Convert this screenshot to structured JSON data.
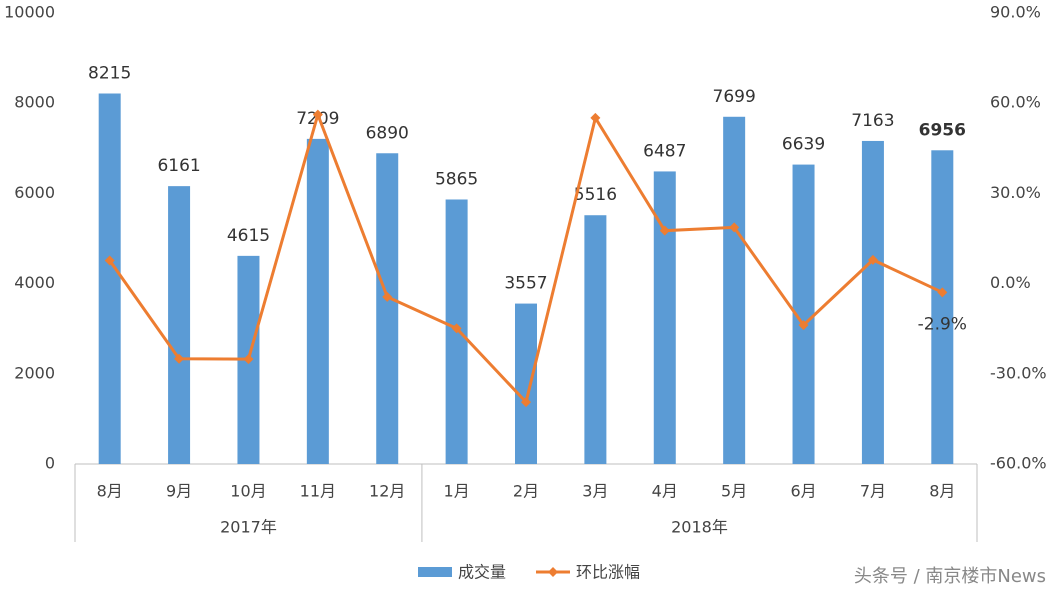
{
  "chart_data": {
    "type": "bar-line",
    "categories": [
      "8月",
      "9月",
      "10月",
      "11月",
      "12月",
      "1月",
      "2月",
      "3月",
      "4月",
      "5月",
      "6月",
      "7月",
      "8月"
    ],
    "groups": [
      {
        "name": "2017年",
        "count": 5
      },
      {
        "name": "2018年",
        "count": 8
      }
    ],
    "series": [
      {
        "name": "成交量",
        "type": "bar",
        "color": "#5b9bd5",
        "values": [
          8215,
          6161,
          4615,
          7209,
          6890,
          5865,
          3557,
          5516,
          6487,
          7699,
          6639,
          7163,
          6956
        ]
      },
      {
        "name": "环比涨幅",
        "type": "line",
        "axis": "y2",
        "color": "#ed7d31",
        "values": [
          7.7,
          -25.0,
          -25.1,
          56.2,
          -4.4,
          -14.9,
          -39.4,
          55.1,
          17.6,
          18.7,
          -13.8,
          7.9,
          -2.9
        ],
        "value_labels": [
          null,
          null,
          null,
          null,
          null,
          null,
          null,
          null,
          null,
          null,
          null,
          null,
          "-2.9%"
        ]
      }
    ],
    "ylim": [
      0,
      10000
    ],
    "yticks": [
      0,
      2000,
      4000,
      6000,
      8000,
      10000
    ],
    "y2lim": [
      -60,
      90
    ],
    "y2ticks": [
      {
        "value": -60,
        "label": "-60.0%"
      },
      {
        "value": -30,
        "label": "-30.0%"
      },
      {
        "value": 0,
        "label": "0.0%"
      },
      {
        "value": 30,
        "label": "30.0%"
      },
      {
        "value": 60,
        "label": "60.0%"
      },
      {
        "value": 90,
        "label": "90.0%"
      }
    ],
    "watermark": "头条号 / 南京楼市News"
  }
}
